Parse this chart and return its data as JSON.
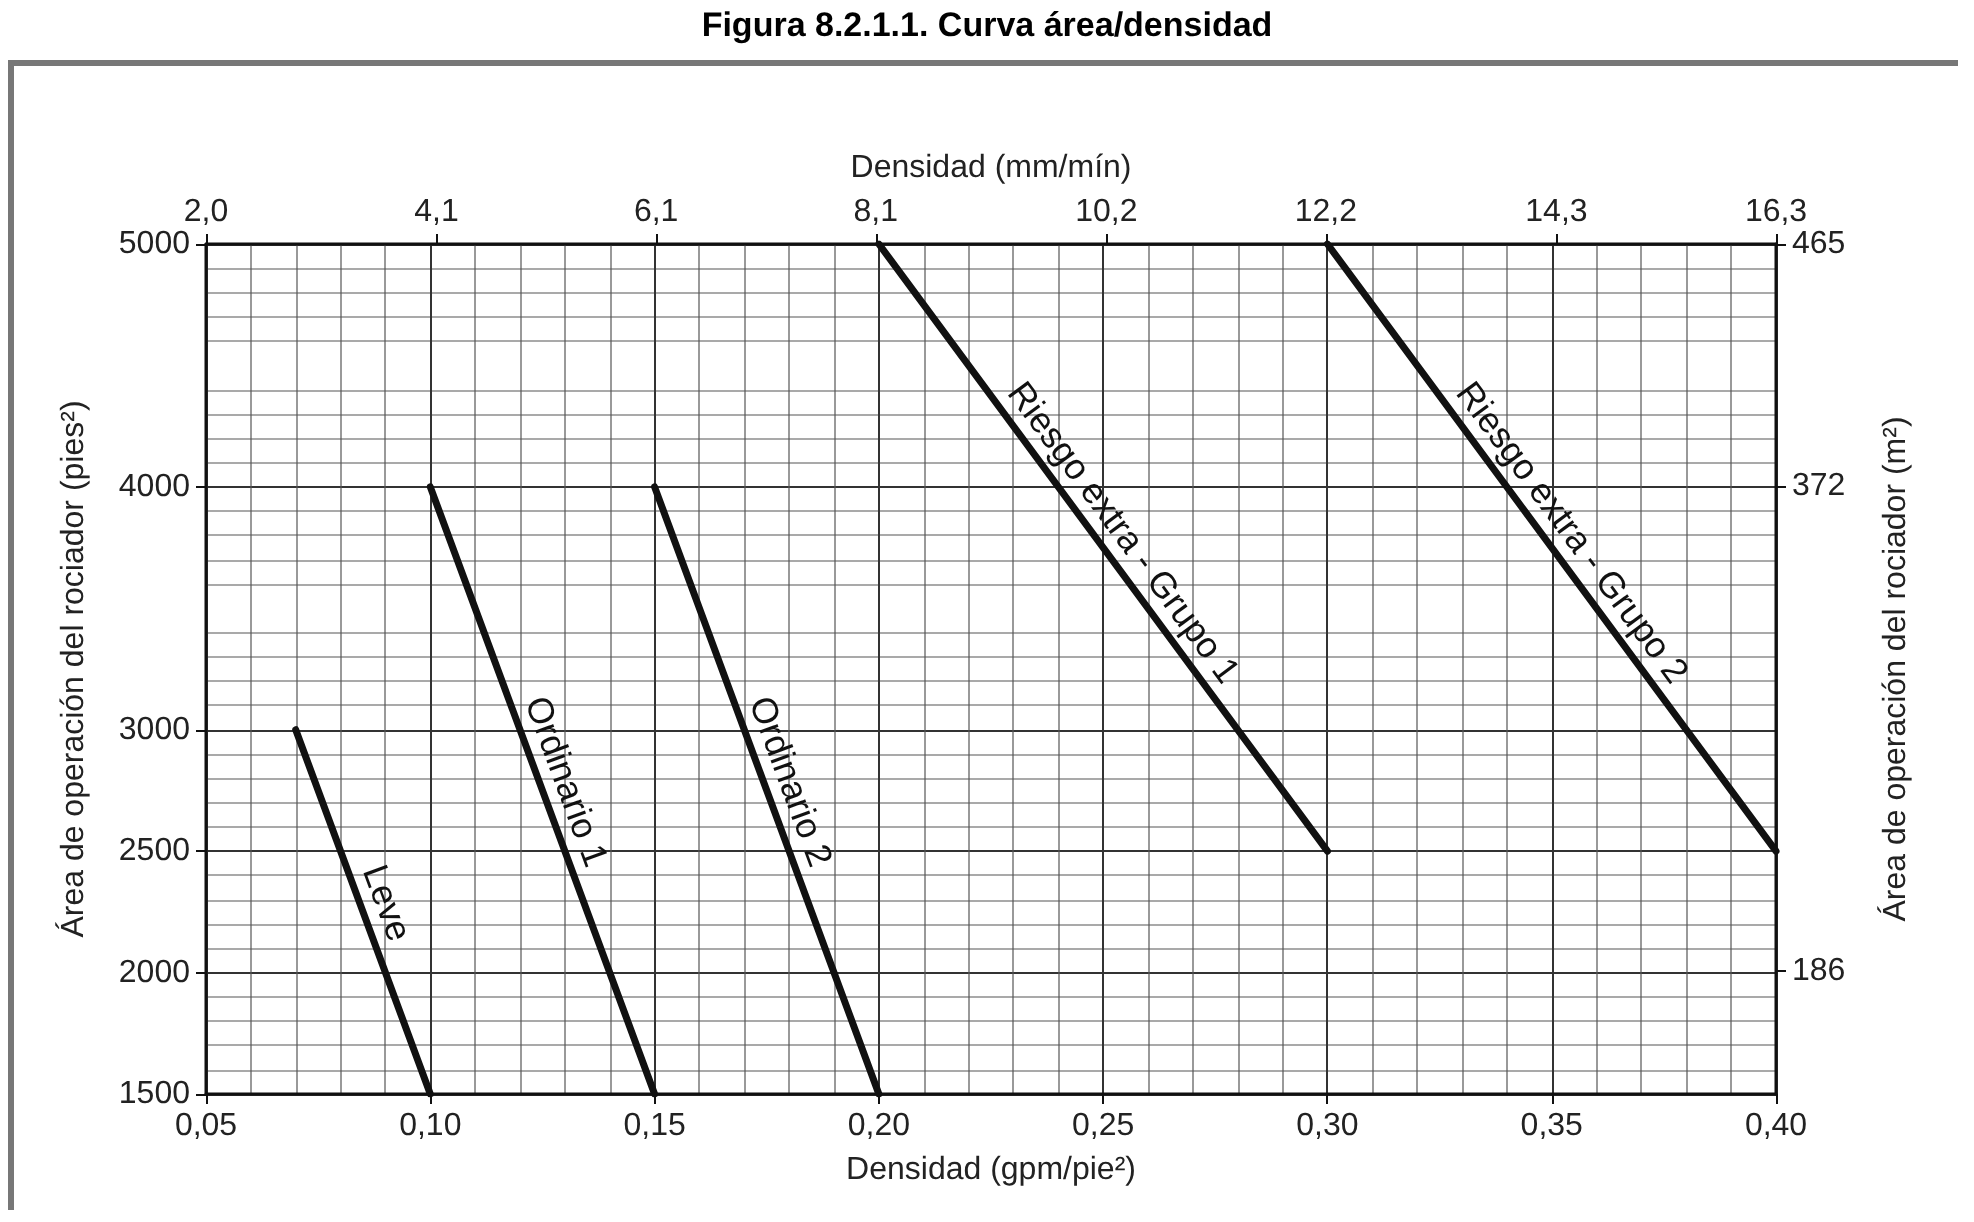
{
  "chart_data": {
    "type": "line",
    "title": "Figura 8.2.1.1. Curva área/densidad",
    "xlabel": "Densidad (gpm/pie²)",
    "x2label": "Densidad (mm/mín)",
    "ylabel": "Área de operación del rociador (pies²)",
    "y2label": "Área de operación del rociador (m²)",
    "xlim": [
      0.05,
      0.4
    ],
    "xticks": [
      {
        "value": 0.05,
        "label": "0,05"
      },
      {
        "value": 0.1,
        "label": "0,10"
      },
      {
        "value": 0.15,
        "label": "0,15"
      },
      {
        "value": 0.2,
        "label": "0,20"
      },
      {
        "value": 0.25,
        "label": "0,25"
      },
      {
        "value": 0.3,
        "label": "0,30"
      },
      {
        "value": 0.35,
        "label": "0,35"
      },
      {
        "value": 0.4,
        "label": "0,40"
      }
    ],
    "x2lim": [
      2.0,
      16.3
    ],
    "x2ticks": [
      {
        "value": 2.0,
        "label": "2,0"
      },
      {
        "value": 4.1,
        "label": "4,1"
      },
      {
        "value": 6.1,
        "label": "6,1"
      },
      {
        "value": 8.1,
        "label": "8,1"
      },
      {
        "value": 10.2,
        "label": "10,2"
      },
      {
        "value": 12.2,
        "label": "12,2"
      },
      {
        "value": 14.3,
        "label": "14,3"
      },
      {
        "value": 16.3,
        "label": "16,3"
      }
    ],
    "ylim": [
      1500,
      5000
    ],
    "yticks": [
      1500,
      2000,
      2500,
      3000,
      4000,
      5000
    ],
    "y2lim": [
      139,
      465
    ],
    "y2ticks": [
      186,
      372,
      465
    ],
    "grid": true,
    "legend": false,
    "marker": "none",
    "line_style": "solid",
    "series": [
      {
        "name": "Leve",
        "color": "#111111",
        "x": [
          0.07,
          0.1
        ],
        "values": [
          3000,
          1500
        ]
      },
      {
        "name": "Ordinario 1",
        "color": "#111111",
        "x": [
          0.1,
          0.15
        ],
        "values": [
          4000,
          1500
        ]
      },
      {
        "name": "Ordinario 2",
        "color": "#111111",
        "x": [
          0.15,
          0.2
        ],
        "values": [
          4000,
          1500
        ]
      },
      {
        "name": "Riesgo extra - Grupo 1",
        "color": "#111111",
        "x": [
          0.2,
          0.3
        ],
        "values": [
          5000,
          2500
        ]
      },
      {
        "name": "Riesgo extra - Grupo 2",
        "color": "#111111",
        "x": [
          0.3,
          0.4
        ],
        "values": [
          5000,
          2500
        ]
      }
    ]
  }
}
